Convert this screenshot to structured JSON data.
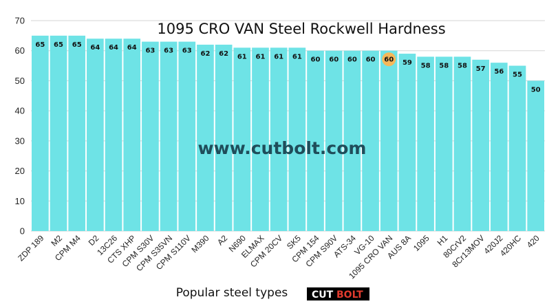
{
  "chart_data": {
    "type": "bar",
    "title": "1095 CRO VAN Steel Rockwell Hardness",
    "xlabel": "Popular steel types",
    "ylabel": "",
    "ylim": [
      0,
      70
    ],
    "yticks": [
      0,
      10,
      20,
      30,
      40,
      50,
      60,
      70
    ],
    "grid": true,
    "categories": [
      "ZDP 189",
      "M2",
      "CPM M4",
      "D2",
      "13C26",
      "CTS XHP",
      "CPM S30V",
      "CPM S35VN",
      "CPM S110V",
      "M390",
      "A2",
      "N690",
      "ELMAX",
      "CPM 20CV",
      "SK5",
      "CPM 154",
      "CPM S90V",
      "ATS-34",
      "VG-10",
      "1095 CRO VAN",
      "AUS 8A",
      "1095",
      "H1",
      "80CrV2",
      "8Cr13MOV",
      "420J2",
      "420HC",
      "420"
    ],
    "values": [
      65,
      65,
      65,
      64,
      64,
      64,
      63,
      63,
      63,
      62,
      62,
      61,
      61,
      61,
      61,
      60,
      60,
      60,
      60,
      60,
      59,
      58,
      58,
      58,
      57,
      56,
      55,
      50
    ],
    "highlight_category": "1095 CRO VAN",
    "bar_color": "#6ee3e6",
    "highlight_color": "#f5b85a"
  },
  "watermark": "www.cutbolt.com",
  "logo": {
    "part1": "CUT",
    "part2": "BOLT"
  }
}
